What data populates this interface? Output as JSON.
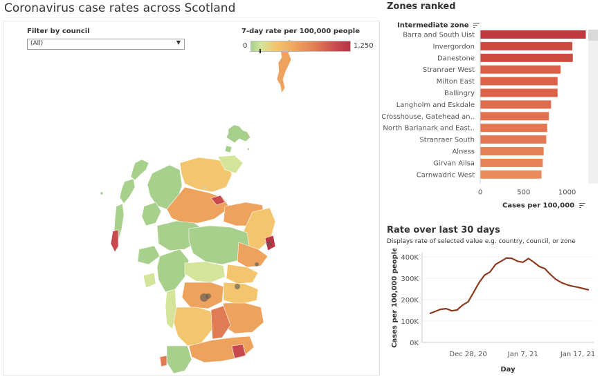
{
  "page": {
    "title": "Coronavirus case rates across Scotland"
  },
  "filter": {
    "label": "Filter by council",
    "value": "(All)"
  },
  "legend": {
    "title": "7-day rate per 100,000 people",
    "min": "0",
    "max": "1,250",
    "colors": [
      "#a8d08d",
      "#f4c56f",
      "#e07c55",
      "#b83545"
    ]
  },
  "zones": {
    "title": "Zones ranked",
    "axis_header": "Intermediate zone",
    "xlabel": "Cases per 100,000"
  },
  "rate": {
    "title": "Rate over last 30 days",
    "subtitle": "Displays rate of selected value e.g. country, council, or zone"
  },
  "chart_data": [
    {
      "type": "bar",
      "orientation": "horizontal",
      "title": "Zones ranked",
      "ylabel": "Intermediate zone",
      "xlabel": "Cases per 100,000",
      "categories": [
        "Barra and South Uist",
        "Invergordon",
        "Danestone",
        "Stranraer West",
        "Milton East",
        "Ballingry",
        "Langholm and Eskdale",
        "Crosshouse, Gatehead an..",
        "North Barlanark and East..",
        "Stranraer South",
        "Alness",
        "Girvan Ailsa",
        "Carnwadric West"
      ],
      "values": [
        1215,
        1060,
        1065,
        925,
        890,
        890,
        815,
        790,
        770,
        760,
        730,
        720,
        705
      ],
      "xlim": [
        0,
        1250
      ],
      "xticks": [
        0,
        500,
        1000
      ],
      "bar_colors": [
        "#c0393f",
        "#cc4c42",
        "#cc4c42",
        "#db5e48",
        "#dc6249",
        "#dc6249",
        "#df6c4d",
        "#e1714f",
        "#e37651",
        "#e37853",
        "#e58055",
        "#e68457",
        "#e98a5a"
      ]
    },
    {
      "type": "line",
      "title": "Rate over last 30 days",
      "xlabel": "Day",
      "ylabel": "Cases per 100,000 people",
      "x_ticks": [
        "Dec 28, 20",
        "Jan 7, 21",
        "Jan 17, 21"
      ],
      "y_ticks": [
        "0K",
        "100K",
        "200K",
        "300K",
        "400K"
      ],
      "ylim": [
        0,
        420000
      ],
      "line_color": "#8b3a1f",
      "series": [
        {
          "x": [
            "2020-12-21",
            "2020-12-22",
            "2020-12-23",
            "2020-12-24",
            "2020-12-25",
            "2020-12-26",
            "2020-12-27",
            "2020-12-28",
            "2020-12-29",
            "2020-12-30",
            "2020-12-31",
            "2021-01-01",
            "2021-01-02",
            "2021-01-03",
            "2021-01-04",
            "2021-01-05",
            "2021-01-06",
            "2021-01-07",
            "2021-01-08",
            "2021-01-09",
            "2021-01-10",
            "2021-01-11",
            "2021-01-12",
            "2021-01-13",
            "2021-01-14",
            "2021-01-15",
            "2021-01-16",
            "2021-01-17",
            "2021-01-18",
            "2021-01-19"
          ],
          "values": [
            135000,
            145000,
            155000,
            158000,
            148000,
            152000,
            175000,
            190000,
            235000,
            280000,
            315000,
            330000,
            365000,
            380000,
            395000,
            393000,
            380000,
            375000,
            393000,
            375000,
            355000,
            345000,
            318000,
            295000,
            280000,
            270000,
            263000,
            258000,
            252000,
            246000
          ]
        }
      ]
    }
  ]
}
